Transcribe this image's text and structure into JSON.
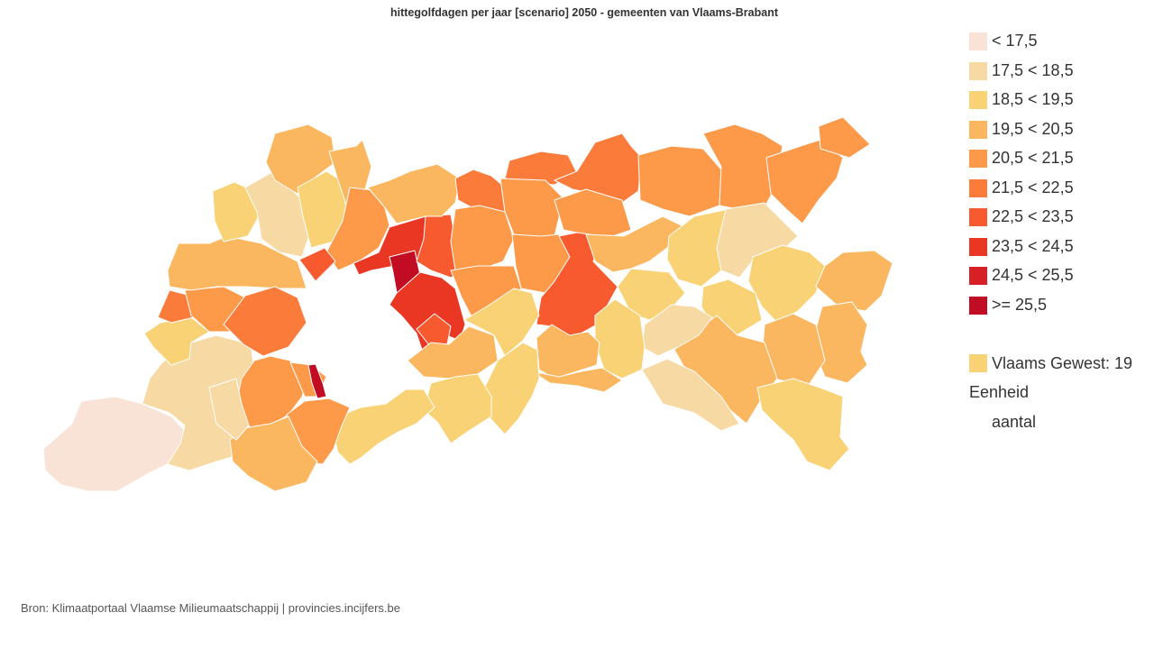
{
  "title": "hittegolfdagen per jaar [scenario] 2050 - gemeenten van Vlaams-Brabant",
  "legend": [
    {
      "label": "< 17,5",
      "color": "#f8e3d6"
    },
    {
      "label": "17,5 < 18,5",
      "color": "#f7d9a3"
    },
    {
      "label": "18,5 < 19,5",
      "color": "#f8d274"
    },
    {
      "label": "19,5 < 20,5",
      "color": "#fbb75f"
    },
    {
      "label": "20,5 < 21,5",
      "color": "#fd9a4a"
    },
    {
      "label": "21,5 < 22,5",
      "color": "#fb7b3b"
    },
    {
      "label": "22,5 < 23,5",
      "color": "#f65a2e"
    },
    {
      "label": "23,5 < 24,5",
      "color": "#e93724"
    },
    {
      "label": "24,5 < 25,5",
      "color": "#d62026"
    },
    {
      "label": ">= 25,5",
      "color": "#c10c23"
    }
  ],
  "average": {
    "label": "Vlaams Gewest: 19",
    "value": 19,
    "color": "#f8d274"
  },
  "unit": {
    "title": "Eenheid",
    "value": "aantal"
  },
  "source": "Bron: Klimaatportaal Vlaamse Milieumaatschappij | provincies.incijfers.be"
}
